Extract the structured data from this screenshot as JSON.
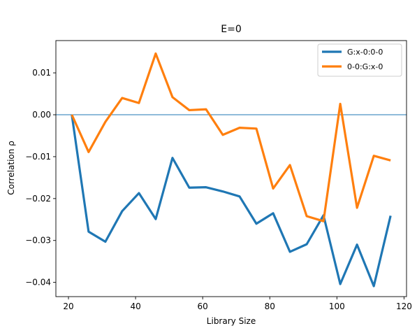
{
  "chart_data": {
    "type": "line",
    "title": "E=0",
    "xlabel": "Library Size",
    "ylabel": "Correlation ρ",
    "xlim": [
      16.25,
      120.75
    ],
    "ylim": [
      -0.0434,
      0.0177
    ],
    "xticks": [
      20,
      40,
      60,
      80,
      100,
      120
    ],
    "yticks": [
      0.01,
      0.0,
      -0.01,
      -0.02,
      -0.03,
      -0.04
    ],
    "ytick_labels": [
      "0.01",
      "0.00",
      "−0.01",
      "−0.02",
      "−0.03",
      "−0.04"
    ],
    "hline": 0.0,
    "legend_position": "top-right",
    "grid": false,
    "x": [
      21,
      26,
      31,
      36,
      41,
      46,
      51,
      56,
      61,
      66,
      71,
      76,
      81,
      86,
      91,
      96,
      101,
      106,
      111,
      116
    ],
    "series": [
      {
        "name": "G:x-0:0-0",
        "color": "#1f77b4",
        "values": [
          0.0,
          -0.0279,
          -0.0303,
          -0.023,
          -0.0187,
          -0.0249,
          -0.0103,
          -0.0174,
          -0.0173,
          -0.0183,
          -0.0195,
          -0.026,
          -0.0235,
          -0.0327,
          -0.0309,
          -0.024,
          -0.0404,
          -0.031,
          -0.0409,
          -0.0241
        ]
      },
      {
        "name": "0-0:G:x-0",
        "color": "#ff7f0e",
        "values": [
          0.0,
          -0.0089,
          -0.0017,
          0.004,
          0.0028,
          0.0146,
          0.0042,
          0.0011,
          0.0013,
          -0.0048,
          -0.0031,
          -0.0033,
          -0.0176,
          -0.012,
          -0.0242,
          -0.0254,
          0.0026,
          -0.0222,
          -0.0098,
          -0.0109
        ]
      }
    ]
  }
}
